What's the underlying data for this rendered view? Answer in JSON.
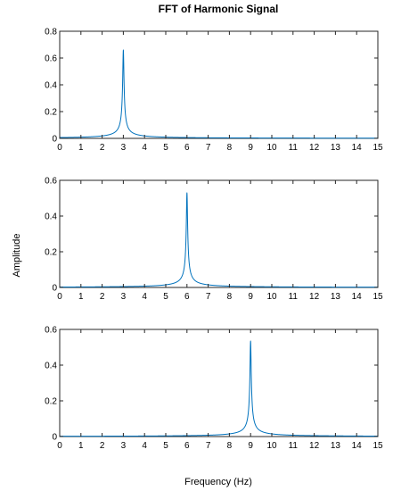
{
  "title": "FFT of Harmonic Signal",
  "xlabel": "Frequency (Hz)",
  "ylabel": "Amplitude",
  "series_color": "#0072BD",
  "chart_data": [
    {
      "type": "line",
      "xlim": [
        0,
        15
      ],
      "ylim": [
        0,
        0.8
      ],
      "x_ticks": [
        0,
        1,
        2,
        3,
        4,
        5,
        6,
        7,
        8,
        9,
        10,
        11,
        12,
        13,
        14,
        15
      ],
      "y_ticks": [
        0,
        0.2,
        0.4,
        0.6,
        0.8
      ],
      "x_tick_labels": [
        "0",
        "1",
        "2",
        "3",
        "4",
        "5",
        "6",
        "7",
        "8",
        "9",
        "10",
        "11",
        "12",
        "13",
        "14",
        "15"
      ],
      "y_tick_labels": [
        "0",
        "0.2",
        "0.4",
        "0.6",
        "0.8"
      ],
      "series": [
        {
          "peak_frequency": 3,
          "peak_amplitude": 0.66
        }
      ]
    },
    {
      "type": "line",
      "xlim": [
        0,
        15
      ],
      "ylim": [
        0,
        0.6
      ],
      "x_ticks": [
        0,
        1,
        2,
        3,
        4,
        5,
        6,
        7,
        8,
        9,
        10,
        11,
        12,
        13,
        14,
        15
      ],
      "y_ticks": [
        0,
        0.2,
        0.4,
        0.6
      ],
      "x_tick_labels": [
        "0",
        "1",
        "2",
        "3",
        "4",
        "5",
        "6",
        "7",
        "8",
        "9",
        "10",
        "11",
        "12",
        "13",
        "14",
        "15"
      ],
      "y_tick_labels": [
        "0",
        "0.2",
        "0.4",
        "0.6"
      ],
      "series": [
        {
          "peak_frequency": 6,
          "peak_amplitude": 0.53
        }
      ]
    },
    {
      "type": "line",
      "xlim": [
        0,
        15
      ],
      "ylim": [
        0,
        0.6
      ],
      "x_ticks": [
        0,
        1,
        2,
        3,
        4,
        5,
        6,
        7,
        8,
        9,
        10,
        11,
        12,
        13,
        14,
        15
      ],
      "y_ticks": [
        0,
        0.2,
        0.4,
        0.6
      ],
      "x_tick_labels": [
        "0",
        "1",
        "2",
        "3",
        "4",
        "5",
        "6",
        "7",
        "8",
        "9",
        "10",
        "11",
        "12",
        "13",
        "14",
        "15"
      ],
      "y_tick_labels": [
        "0",
        "0.2",
        "0.4",
        "0.6"
      ],
      "series": [
        {
          "peak_frequency": 9,
          "peak_amplitude": 0.535
        }
      ]
    }
  ]
}
